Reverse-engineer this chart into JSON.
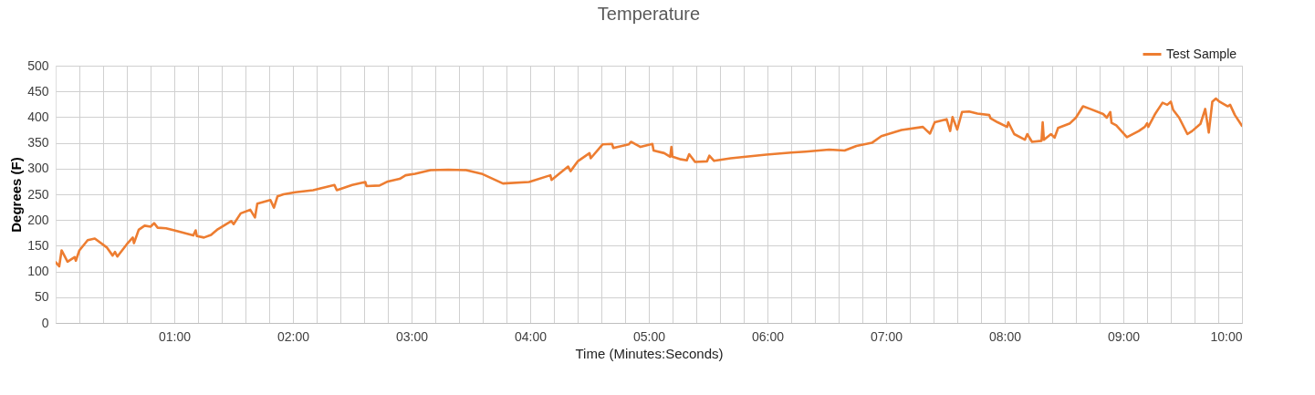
{
  "chart_data": {
    "type": "line",
    "title": "Temperature",
    "xlabel": "Time (Minutes:Seconds)",
    "ylabel": "Degrees (F)",
    "xlim": [
      0,
      10
    ],
    "ylim": [
      0,
      500
    ],
    "xticks": [
      {
        "value": 0.2,
        "label": null
      },
      {
        "value": 0.4,
        "label": null
      },
      {
        "value": 0.6,
        "label": null
      },
      {
        "value": 0.8,
        "label": null
      },
      {
        "value": 1,
        "label": "01:00"
      },
      {
        "value": 1.2,
        "label": null
      },
      {
        "value": 1.4,
        "label": null
      },
      {
        "value": 1.6,
        "label": null
      },
      {
        "value": 1.8,
        "label": null
      },
      {
        "value": 2,
        "label": "02:00"
      },
      {
        "value": 2.2,
        "label": null
      },
      {
        "value": 2.4,
        "label": null
      },
      {
        "value": 2.6,
        "label": null
      },
      {
        "value": 2.8,
        "label": null
      },
      {
        "value": 3,
        "label": "03:00"
      },
      {
        "value": 3.2,
        "label": null
      },
      {
        "value": 3.4,
        "label": null
      },
      {
        "value": 3.6,
        "label": null
      },
      {
        "value": 3.8,
        "label": null
      },
      {
        "value": 4,
        "label": "04:00"
      },
      {
        "value": 4.2,
        "label": null
      },
      {
        "value": 4.4,
        "label": null
      },
      {
        "value": 4.6,
        "label": null
      },
      {
        "value": 4.8,
        "label": null
      },
      {
        "value": 5,
        "label": "05:00"
      },
      {
        "value": 5.2,
        "label": null
      },
      {
        "value": 5.4,
        "label": null
      },
      {
        "value": 5.6,
        "label": null
      },
      {
        "value": 5.8,
        "label": null
      },
      {
        "value": 6,
        "label": "06:00"
      },
      {
        "value": 6.2,
        "label": null
      },
      {
        "value": 6.4,
        "label": null
      },
      {
        "value": 6.6,
        "label": null
      },
      {
        "value": 6.8,
        "label": null
      },
      {
        "value": 7,
        "label": "07:00"
      },
      {
        "value": 7.2,
        "label": null
      },
      {
        "value": 7.4,
        "label": null
      },
      {
        "value": 7.6,
        "label": null
      },
      {
        "value": 7.8,
        "label": null
      },
      {
        "value": 8,
        "label": "08:00"
      },
      {
        "value": 8.2,
        "label": null
      },
      {
        "value": 8.4,
        "label": null
      },
      {
        "value": 8.6,
        "label": null
      },
      {
        "value": 8.8,
        "label": null
      },
      {
        "value": 9,
        "label": "09:00"
      },
      {
        "value": 9.2,
        "label": null
      },
      {
        "value": 9.4,
        "label": null
      },
      {
        "value": 9.6,
        "label": null
      },
      {
        "value": 9.8,
        "label": null
      },
      {
        "value": 10,
        "label": "10:00"
      }
    ],
    "yticks": [
      0,
      50,
      100,
      150,
      200,
      250,
      300,
      350,
      400,
      450,
      500
    ],
    "grid": true,
    "legend": "top right",
    "marker": "none",
    "line_style": "solid",
    "series": [
      {
        "name": "Test Sample",
        "color": "#ed7d31",
        "x": [
          0.0,
          0.03,
          0.05,
          0.1,
          0.16,
          0.17,
          0.2,
          0.27,
          0.33,
          0.43,
          0.48,
          0.5,
          0.52,
          0.6,
          0.65,
          0.66,
          0.7,
          0.75,
          0.8,
          0.83,
          0.86,
          0.93,
          1.0,
          1.08,
          1.16,
          1.18,
          1.19,
          1.25,
          1.31,
          1.33,
          1.36,
          1.48,
          1.5,
          1.56,
          1.64,
          1.68,
          1.7,
          1.81,
          1.84,
          1.87,
          1.92,
          2.02,
          2.17,
          2.35,
          2.37,
          2.5,
          2.61,
          2.62,
          2.73,
          2.8,
          2.9,
          2.95,
          3.03,
          3.16,
          3.31,
          3.46,
          3.59,
          3.77,
          3.99,
          4.17,
          4.18,
          4.32,
          4.34,
          4.4,
          4.5,
          4.51,
          4.61,
          4.69,
          4.7,
          4.83,
          4.85,
          4.93,
          5.03,
          5.04,
          5.13,
          5.18,
          5.19,
          5.2,
          5.27,
          5.32,
          5.34,
          5.39,
          5.49,
          5.51,
          5.55,
          5.69,
          5.82,
          5.99,
          6.2,
          6.32,
          6.52,
          6.65,
          6.75,
          6.88,
          6.96,
          7.13,
          7.31,
          7.37,
          7.41,
          7.51,
          7.54,
          7.56,
          7.6,
          7.64,
          7.7,
          7.77,
          7.87,
          7.88,
          7.94,
          8.02,
          8.03,
          8.08,
          8.17,
          8.19,
          8.23,
          8.31,
          8.32,
          8.33,
          8.39,
          8.42,
          8.45,
          8.55,
          8.6,
          8.66,
          8.72,
          8.83,
          8.86,
          8.89,
          8.9,
          8.94,
          9.03,
          9.13,
          9.18,
          9.2,
          9.21,
          9.27,
          9.33,
          9.37,
          9.4,
          9.42,
          9.47,
          9.54,
          9.58,
          9.65,
          9.69,
          9.72,
          9.75,
          9.78,
          9.81,
          9.88,
          9.9,
          9.94,
          10.0
        ],
        "values": [
          118,
          110,
          141,
          119,
          128,
          121,
          141,
          161,
          164,
          147,
          131,
          138,
          129,
          153,
          166,
          155,
          181,
          189,
          187,
          194,
          185,
          184,
          180,
          175,
          170,
          180,
          169,
          166,
          171,
          175,
          181,
          198,
          192,
          213,
          220,
          205,
          232,
          239,
          224,
          246,
          250,
          254,
          258,
          268,
          258,
          268,
          274,
          266,
          267,
          275,
          280,
          287,
          290,
          297,
          298,
          297,
          290,
          271,
          274,
          287,
          278,
          304,
          295,
          314,
          330,
          320,
          347,
          348,
          340,
          347,
          352,
          342,
          348,
          335,
          330,
          323,
          342,
          323,
          318,
          316,
          328,
          313,
          314,
          325,
          315,
          320,
          323,
          327,
          331,
          333,
          337,
          335,
          344,
          350,
          363,
          375,
          381,
          368,
          390,
          396,
          373,
          400,
          376,
          410,
          411,
          407,
          404,
          398,
          390,
          381,
          390,
          367,
          356,
          367,
          352,
          354,
          390,
          356,
          367,
          360,
          379,
          388,
          399,
          421,
          416,
          406,
          399,
          410,
          389,
          384,
          361,
          373,
          381,
          388,
          381,
          407,
          428,
          424,
          430,
          414,
          399,
          367,
          373,
          387,
          416,
          370,
          430,
          436,
          430,
          421,
          424,
          404,
          383
        ]
      }
    ]
  }
}
